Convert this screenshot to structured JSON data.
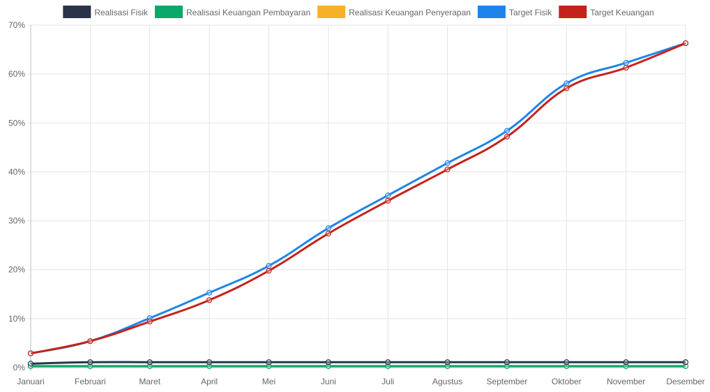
{
  "chart_data": {
    "type": "line",
    "categories": [
      "Januari",
      "Februari",
      "Maret",
      "April",
      "Mei",
      "Juni",
      "Juli",
      "Agustus",
      "September",
      "Oktober",
      "November",
      "Desember"
    ],
    "y_ticks": [
      "0%",
      "10%",
      "20%",
      "30%",
      "40%",
      "50%",
      "60%",
      "70%"
    ],
    "ylim": [
      0,
      70
    ],
    "grid": true,
    "legend_position": "top",
    "series": [
      {
        "name": "Realisasi Fisik",
        "color": "#2a3349",
        "values": [
          0.8,
          1.1,
          1.1,
          1.1,
          1.1,
          1.1,
          1.1,
          1.1,
          1.1,
          1.1,
          1.1,
          1.1
        ]
      },
      {
        "name": "Realisasi Keuangan Pembayaran",
        "color": "#0aa86a",
        "values": [
          0.3,
          0.3,
          0.3,
          0.3,
          0.3,
          0.3,
          0.3,
          0.3,
          0.3,
          0.3,
          0.3,
          0.3
        ]
      },
      {
        "name": "Realisasi Keuangan Penyerapan",
        "color": "#f5b228",
        "values": [
          0.3,
          0.3,
          0.3,
          0.3,
          0.3,
          0.3,
          0.3,
          0.3,
          0.3,
          0.3,
          0.3,
          0.3
        ]
      },
      {
        "name": "Target Fisik",
        "color": "#1e84ea",
        "values": [
          2.9,
          5.4,
          10.1,
          15.3,
          20.8,
          28.5,
          35.2,
          41.8,
          48.4,
          58.1,
          62.3,
          66.3
        ]
      },
      {
        "name": "Target Keuangan",
        "color": "#c4231b",
        "values": [
          2.9,
          5.4,
          9.4,
          13.8,
          19.8,
          27.4,
          34.1,
          40.5,
          47.2,
          57.1,
          61.3,
          66.3
        ]
      }
    ]
  }
}
